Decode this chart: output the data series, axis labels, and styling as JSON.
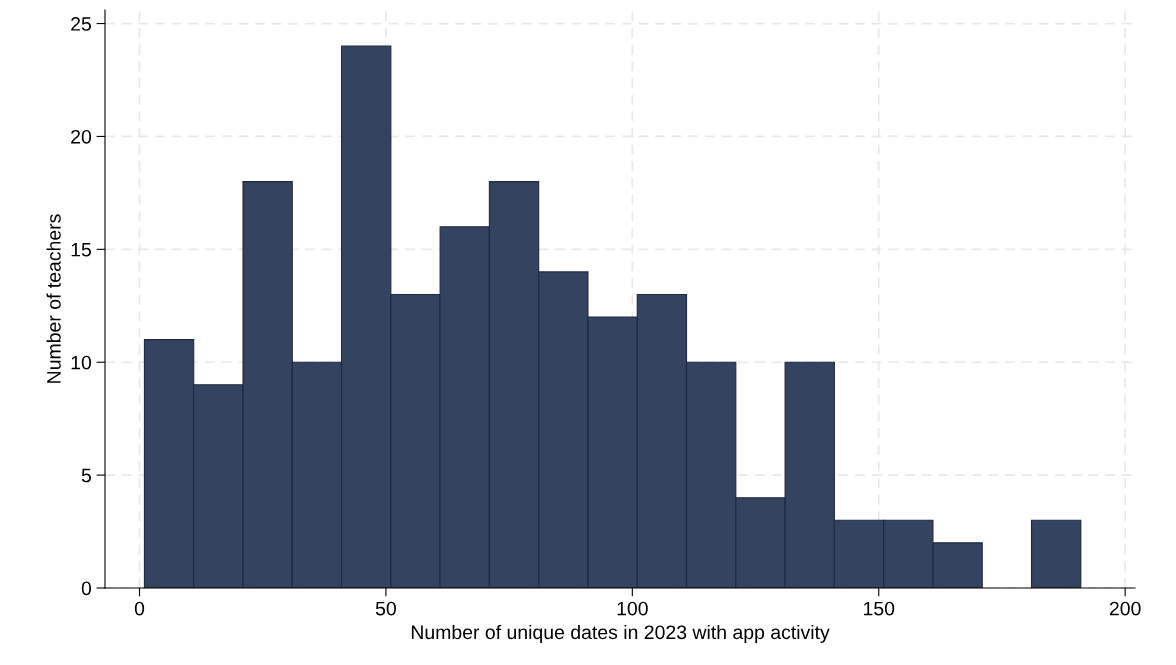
{
  "chart_data": {
    "type": "histogram",
    "xlabel": "Number of unique dates in 2023 with app activity",
    "ylabel": "Number of teachers",
    "bins": [
      1,
      11,
      21,
      31,
      41,
      51,
      61,
      71,
      81,
      91,
      101,
      111,
      121,
      131,
      141,
      151,
      161,
      171,
      181,
      191
    ],
    "values": [
      11,
      9,
      18,
      10,
      24,
      13,
      16,
      18,
      14,
      12,
      13,
      10,
      4,
      10,
      3,
      3,
      2,
      0,
      3
    ],
    "color": "#34435f",
    "xlim": [
      -7,
      202
    ],
    "xticks": [
      0,
      50,
      100,
      150,
      200
    ],
    "ylim": [
      0,
      25.6
    ],
    "yticks": [
      0,
      5,
      10,
      15,
      20,
      25
    ],
    "grid": true
  }
}
